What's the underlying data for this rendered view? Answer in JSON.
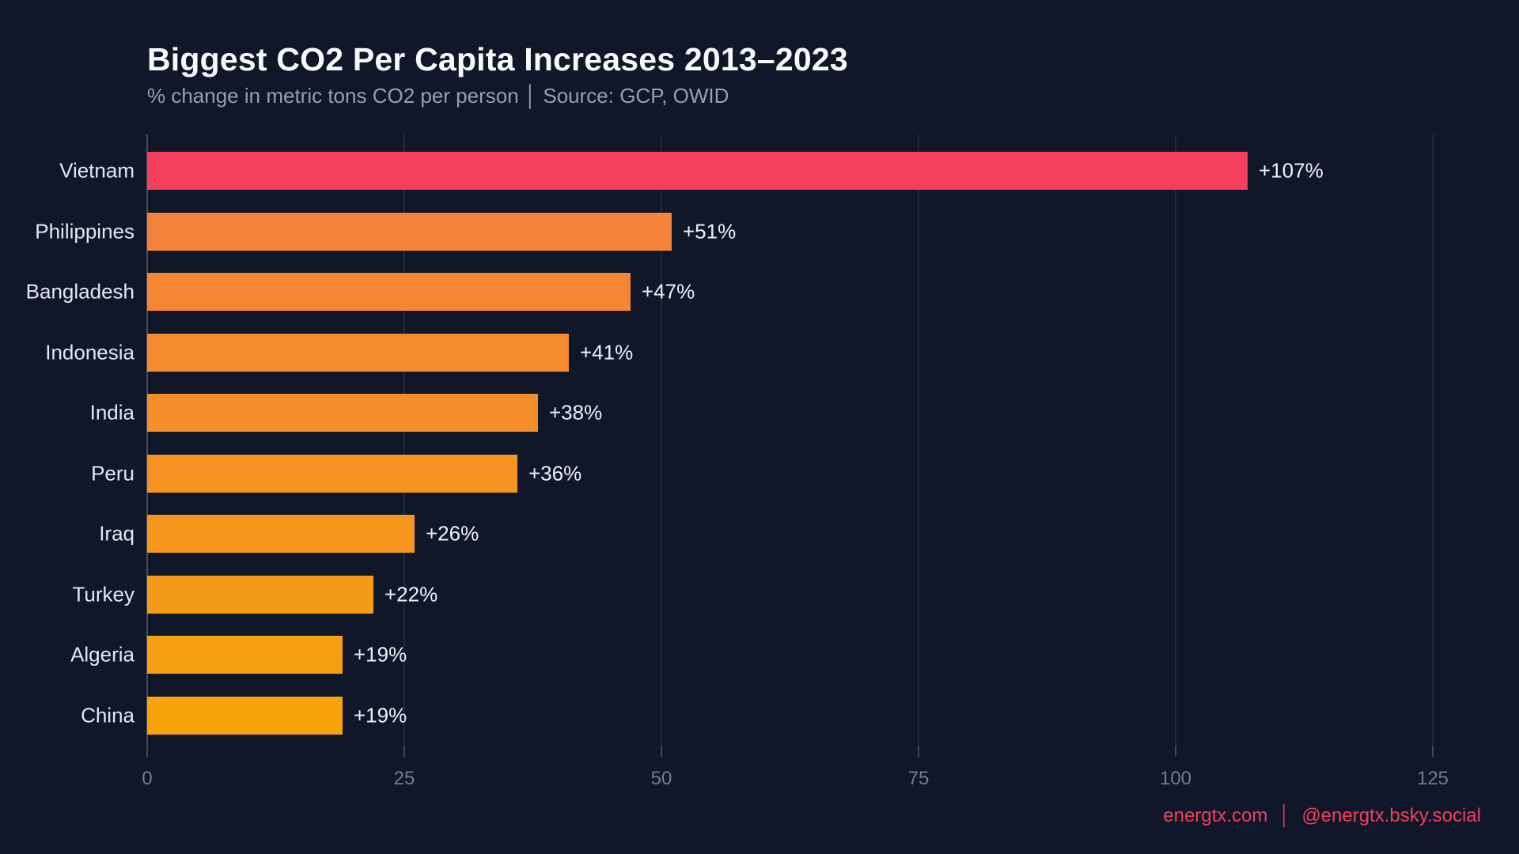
{
  "header": {
    "title": "Biggest CO2 Per Capita Increases 2013–2023",
    "subtitle": "% change in metric tons CO2 per person │ Source: GCP, OWID"
  },
  "footer": {
    "site": "energtx.com",
    "separator": "│",
    "social": "@energtx.bsky.social"
  },
  "colors": {
    "background": "#0f1729",
    "title_text": "#f8fafc",
    "subtitle_text": "#93a1b5",
    "category_label_text": "#e2e8f0",
    "value_label_text": "#eef2f7",
    "tick_label_text": "#6f7d92",
    "gridline": "rgba(148,163,184,0.13)",
    "zero_axis": "rgba(148,163,184,0.38)",
    "footer_text": "#f43f5e",
    "highlight_bar": "#f43f5e"
  },
  "chart_data": {
    "type": "bar",
    "orientation": "horizontal",
    "title": "Biggest CO2 Per Capita Increases 2013–2023",
    "subtitle": "% change in metric tons CO2 per person",
    "source": "Source: GCP, OWID",
    "categories": [
      "Vietnam",
      "Philippines",
      "Bangladesh",
      "Indonesia",
      "India",
      "Peru",
      "Iraq",
      "Turkey",
      "Algeria",
      "China"
    ],
    "values": [
      107,
      51,
      47,
      41,
      38,
      36,
      26,
      22,
      19,
      19
    ],
    "value_labels": [
      "+107%",
      "+51%",
      "+47%",
      "+41%",
      "+38%",
      "+36%",
      "+26%",
      "+22%",
      "+19%",
      "+19%"
    ],
    "bar_colors": [
      "#f43f5e",
      "#f5823a",
      "#f58634",
      "#f58a2f",
      "#f58e29",
      "#f69323",
      "#f6971d",
      "#f69b17",
      "#f69f12",
      "#f6a30c"
    ],
    "xlabel": "",
    "ylabel": "",
    "xlim": [
      0,
      125
    ],
    "xticks": [
      0,
      25,
      50,
      75,
      100,
      125
    ],
    "grid": "vertical-only",
    "legend": "none"
  }
}
